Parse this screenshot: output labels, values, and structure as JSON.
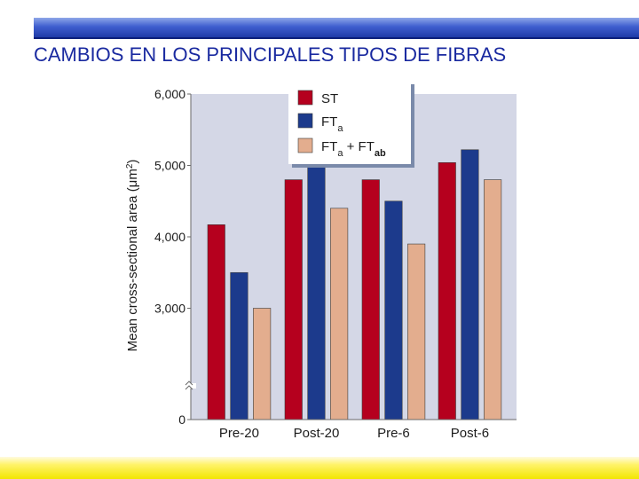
{
  "slide": {
    "title": "CAMBIOS EN LOS PRINCIPALES TIPOS DE FIBRAS"
  },
  "chart_data": {
    "type": "bar",
    "title": "",
    "ylabel_main": "Mean cross-sectional area (",
    "ylabel_unit": "μm",
    "ylabel_sup": "2",
    "ylabel_close": ")",
    "categories": [
      "Pre-20",
      "Post-20",
      "Pre-6",
      "Post-6"
    ],
    "series": [
      {
        "name": "ST",
        "color": "#b5001e",
        "values": [
          4170,
          4800,
          4800,
          5040
        ]
      },
      {
        "name": "FTa",
        "color": "#1c3a8c",
        "values": [
          3500,
          5000,
          4500,
          5220
        ]
      },
      {
        "name": "FTa + FTab",
        "color": "#e3ad8e",
        "values": [
          3000,
          4400,
          3900,
          4800
        ]
      }
    ],
    "legend": [
      {
        "base": "ST",
        "sub": ""
      },
      {
        "base": "FT",
        "sub": "a"
      },
      {
        "base": "FT",
        "sub": "a",
        "mid": " + FT",
        "sub2": "ab"
      }
    ],
    "ylim": [
      2000,
      6000
    ],
    "yticks": [
      {
        "value": 6000,
        "label": "6,000"
      },
      {
        "value": 5000,
        "label": "5,000"
      },
      {
        "value": 4000,
        "label": "4,000"
      },
      {
        "value": 3000,
        "label": "3,000"
      },
      {
        "value": 0,
        "label": "0"
      }
    ],
    "axis_break": true,
    "grid": false,
    "legend_position": "top-center",
    "background": "#d4d7e6"
  }
}
